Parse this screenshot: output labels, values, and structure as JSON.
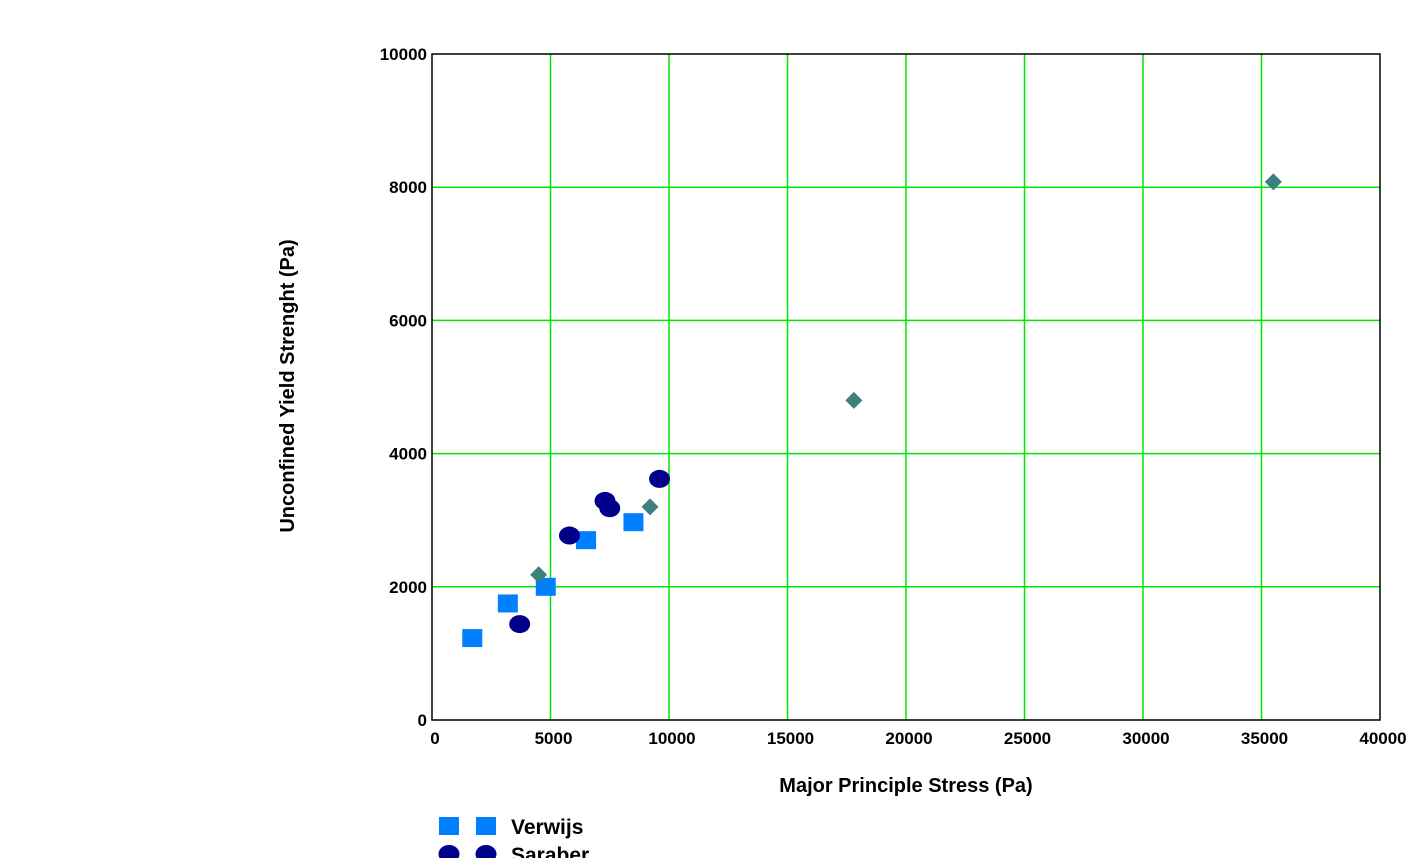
{
  "chart_data": {
    "type": "scatter",
    "xlabel": "Major Principle Stress (Pa)",
    "ylabel": "Unconfined Yield Strenght (Pa)",
    "xlim": [
      0,
      40000
    ],
    "ylim": [
      0,
      10000
    ],
    "xticks": [
      "0",
      "5000",
      "10000",
      "15000",
      "20000",
      "25000",
      "30000",
      "35000",
      "40000"
    ],
    "yticks": [
      "0",
      "2000",
      "4000",
      "6000",
      "8000",
      "10000"
    ],
    "grid": true,
    "grid_color": "#00e600",
    "legend_position": "bottom-left",
    "series": [
      {
        "name": "Verwijs",
        "marker": "square",
        "color": "#0080ff",
        "points": [
          [
            1700,
            1230
          ],
          [
            3200,
            1750
          ],
          [
            4800,
            2000
          ],
          [
            6500,
            2700
          ],
          [
            8500,
            2970
          ]
        ]
      },
      {
        "name": "Saraber",
        "marker": "circle",
        "color": "#00008b",
        "points": [
          [
            3700,
            1440
          ],
          [
            5800,
            2770
          ],
          [
            7300,
            3290
          ],
          [
            7500,
            3180
          ],
          [
            9600,
            3620
          ]
        ]
      },
      {
        "name": "",
        "marker": "diamond",
        "color": "#3c8080",
        "points": [
          [
            4500,
            2180
          ],
          [
            9200,
            3200
          ],
          [
            17800,
            4800
          ],
          [
            35500,
            8080
          ]
        ]
      }
    ]
  }
}
